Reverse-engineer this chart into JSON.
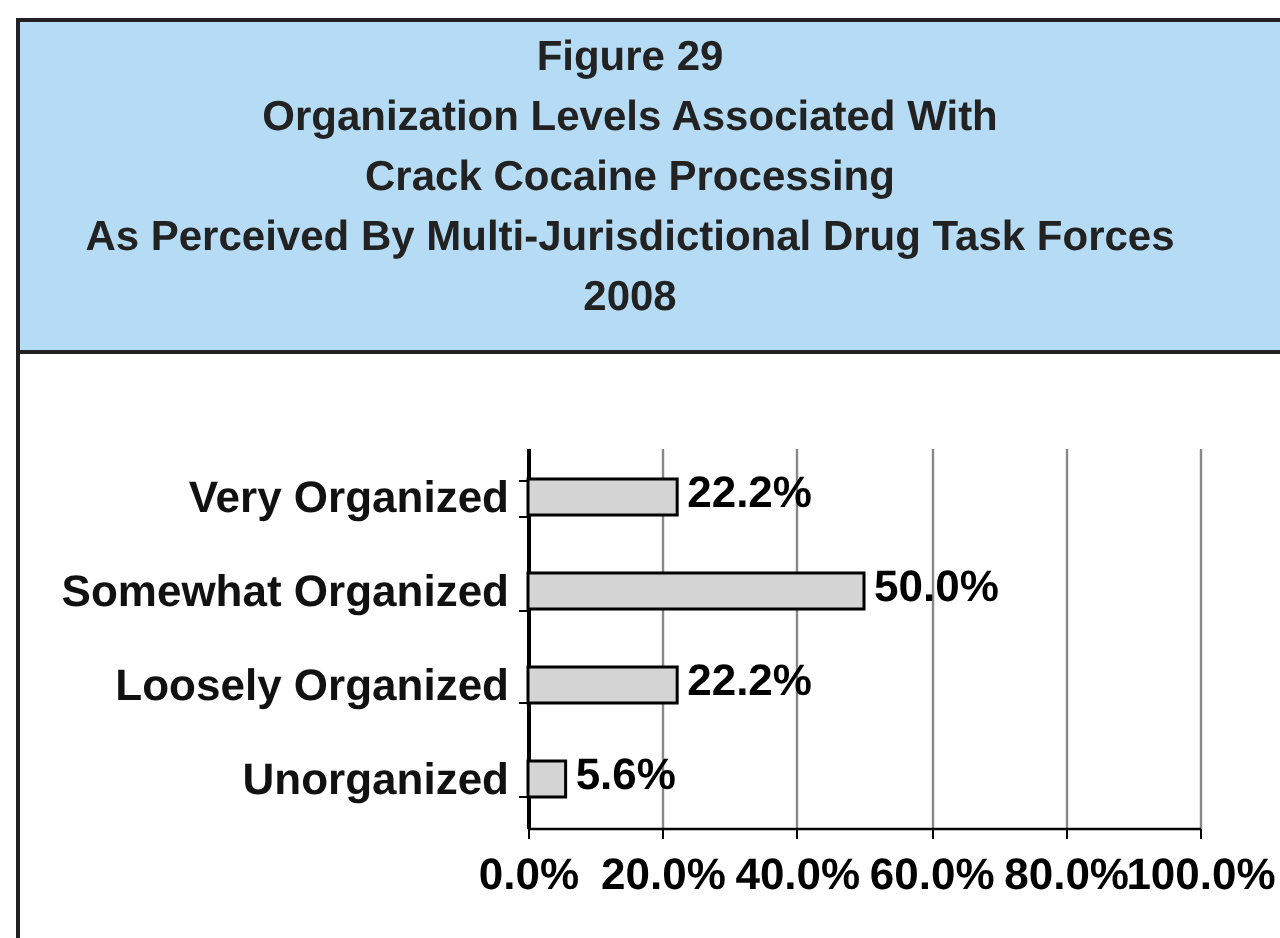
{
  "chart_data": {
    "type": "bar",
    "title": "Figure 29\nOrganization Levels Associated With\nCrack Cocaine Processing\nAs Perceived By Multi-Jurisdictional Drug Task Forces\n2008",
    "categories": [
      "Very Organized",
      "Somewhat Organized",
      "Loosely Organized",
      "Unorganized"
    ],
    "values": [
      22.2,
      50.0,
      22.2,
      5.6
    ],
    "value_labels": [
      "22.2%",
      "50.0%",
      "22.2%",
      "5.6%"
    ],
    "color": "#d4d4d4",
    "orientation": "horizontal",
    "xlim": [
      0,
      100
    ],
    "xticks": [
      {
        "value": 0,
        "label": "0.0%"
      },
      {
        "value": 20,
        "label": "20.0%"
      },
      {
        "value": 40,
        "label": "40.0%"
      },
      {
        "value": 60,
        "label": "60.0%"
      },
      {
        "value": 80,
        "label": "80.0%"
      },
      {
        "value": 100,
        "label": "100.0%"
      }
    ],
    "grid": "x"
  }
}
